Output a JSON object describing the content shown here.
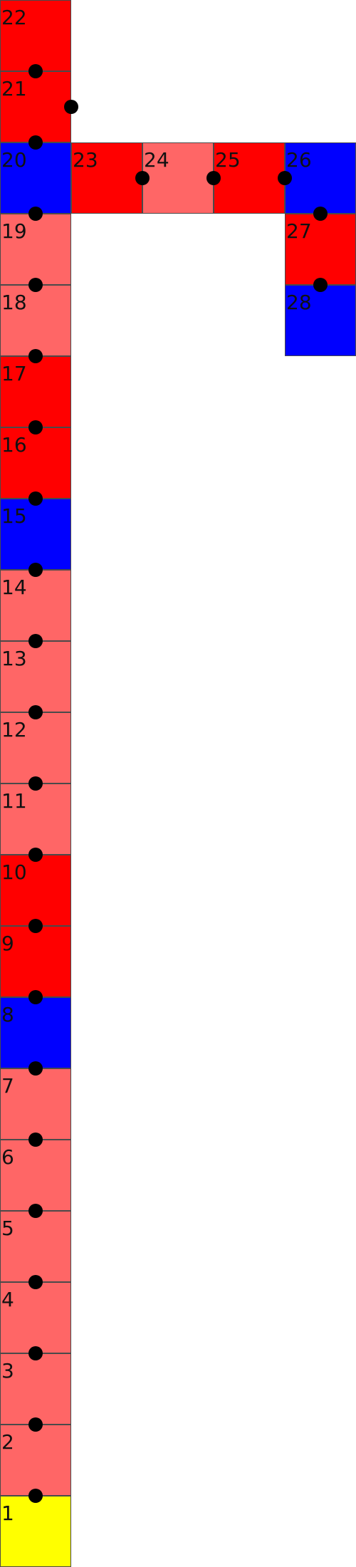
{
  "colors": {
    "red": "#ff0000",
    "light_red": "#ff6666",
    "blue": "#0000ff",
    "yellow": "#ffff00",
    "node": "#000000"
  },
  "cells": [
    {
      "label": "1",
      "color": "yellow"
    },
    {
      "label": "2",
      "color": "light_red"
    },
    {
      "label": "3",
      "color": "light_red"
    },
    {
      "label": "4",
      "color": "light_red"
    },
    {
      "label": "5",
      "color": "light_red"
    },
    {
      "label": "6",
      "color": "light_red"
    },
    {
      "label": "7",
      "color": "light_red"
    },
    {
      "label": "8",
      "color": "blue"
    },
    {
      "label": "9",
      "color": "red"
    },
    {
      "label": "10",
      "color": "red"
    },
    {
      "label": "11",
      "color": "light_red"
    },
    {
      "label": "12",
      "color": "light_red"
    },
    {
      "label": "13",
      "color": "light_red"
    },
    {
      "label": "14",
      "color": "light_red"
    },
    {
      "label": "15",
      "color": "blue"
    },
    {
      "label": "16",
      "color": "red"
    },
    {
      "label": "17",
      "color": "red"
    },
    {
      "label": "18",
      "color": "light_red"
    },
    {
      "label": "19",
      "color": "light_red"
    },
    {
      "label": "20",
      "color": "blue"
    },
    {
      "label": "21",
      "color": "red"
    },
    {
      "label": "22",
      "color": "red"
    },
    {
      "label": "23",
      "color": "red"
    },
    {
      "label": "24",
      "color": "light_red"
    },
    {
      "label": "25",
      "color": "red"
    },
    {
      "label": "26",
      "color": "blue"
    },
    {
      "label": "27",
      "color": "red"
    },
    {
      "label": "28",
      "color": "blue"
    }
  ]
}
